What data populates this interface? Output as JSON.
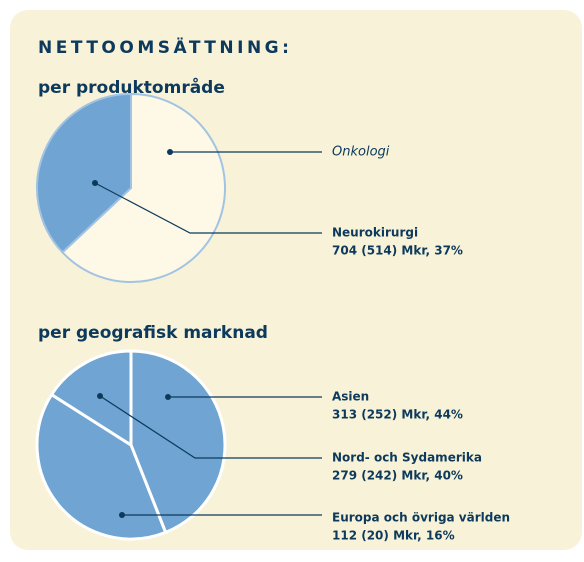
{
  "heading": "NETTOOMSÄTTNING:",
  "chart_data": [
    {
      "type": "pie",
      "title": "per produktområde",
      "categories": [
        "Onkologi",
        "Neurokirurgi"
      ],
      "values": [
        63,
        37
      ],
      "value_labels": [
        null,
        "704 (514) Mkr, 37%"
      ],
      "colors": [
        "#fdf9e6",
        "#6fa4d3"
      ]
    },
    {
      "type": "pie",
      "title": "per geografisk marknad",
      "categories": [
        "Asien",
        "Nord- och Sydamerika",
        "Europa och övriga världen"
      ],
      "values": [
        44,
        40,
        16
      ],
      "value_labels": [
        "313 (252) Mkr, 44%",
        "279 (242) Mkr, 40%",
        "112 (20) Mkr, 16%"
      ],
      "colors": [
        "#6fa4d3",
        "#6fa4d3",
        "#6fa4d3"
      ]
    }
  ]
}
